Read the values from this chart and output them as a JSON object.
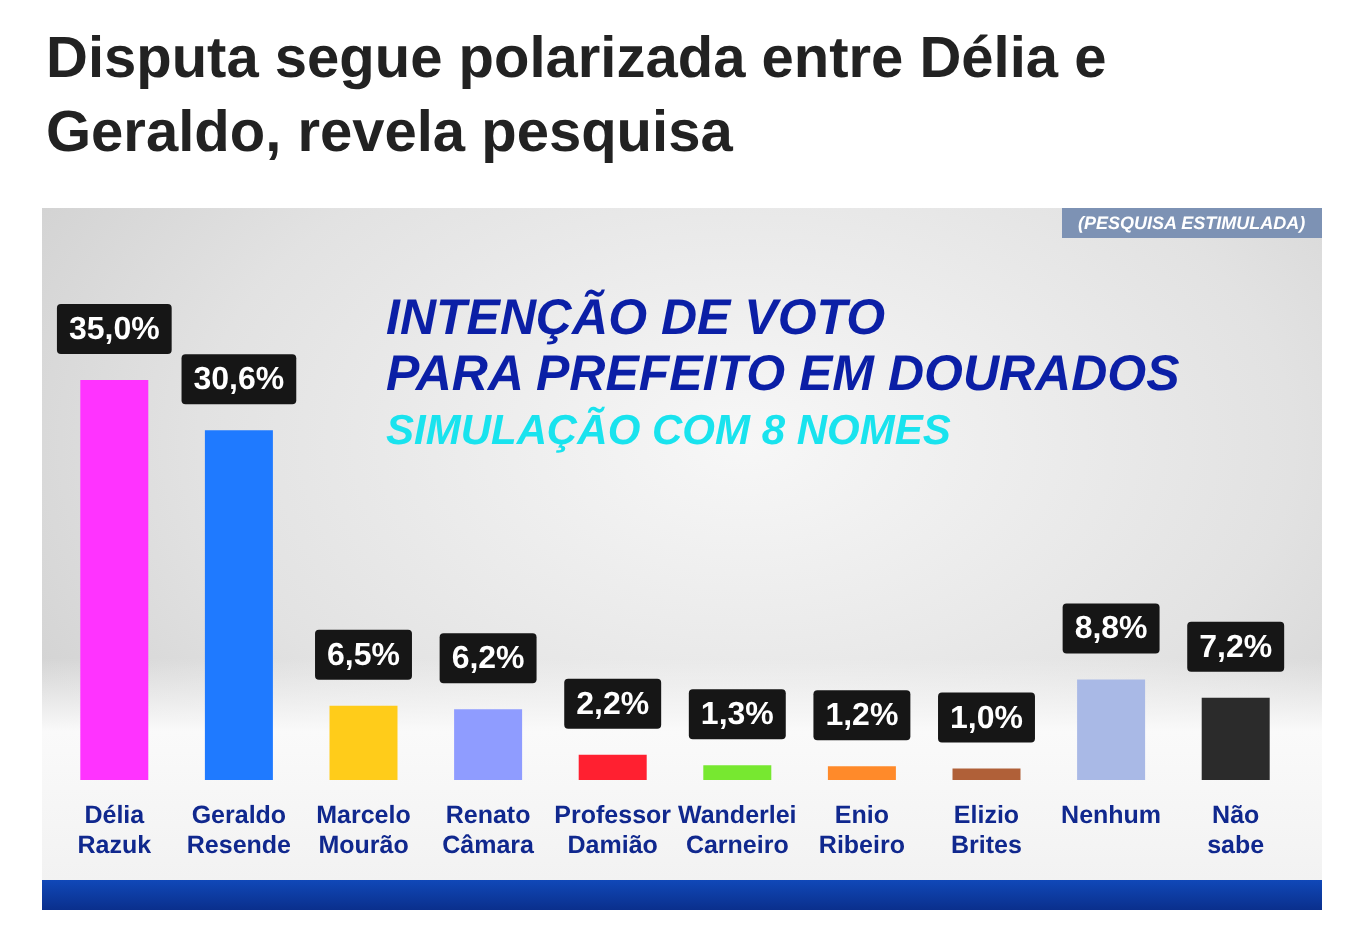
{
  "chart_data": {
    "type": "bar",
    "title": "Disputa segue polarizada entre Délia e Geraldo, revela pesquisa",
    "subtitle": "INTENÇÃO DE VOTO\nPARA PREFEITO EM DOURADOS",
    "annotations": [
      "SIMULAÇÃO COM 8 NOMES",
      "(PESQUISA ESTIMULADA)"
    ],
    "categories": [
      "Délia Razuk",
      "Geraldo Resende",
      "Marcelo Mourão",
      "Renato Câmara",
      "Professor Damião",
      "Wanderlei Carneiro",
      "Enio Ribeiro",
      "Elizio Brites",
      "Nenhum",
      "Não sabe"
    ],
    "values": [
      35.0,
      30.6,
      6.5,
      6.2,
      2.2,
      1.3,
      1.2,
      1.0,
      8.8,
      7.2
    ],
    "colors": [
      "#ff33ff",
      "#1f7aff",
      "#ffcc1a",
      "#8f9cff",
      "#ff2030",
      "#77e830",
      "#ff8a2a",
      "#b06038",
      "#a9b9e6",
      "#2b2b2b"
    ],
    "value_labels": [
      "35,0%",
      "30,6%",
      "6,5%",
      "6,2%",
      "2,2%",
      "1,3%",
      "1,2%",
      "1,0%",
      "8,8%",
      "7,2%"
    ],
    "tick_labels": "x"
  }
}
